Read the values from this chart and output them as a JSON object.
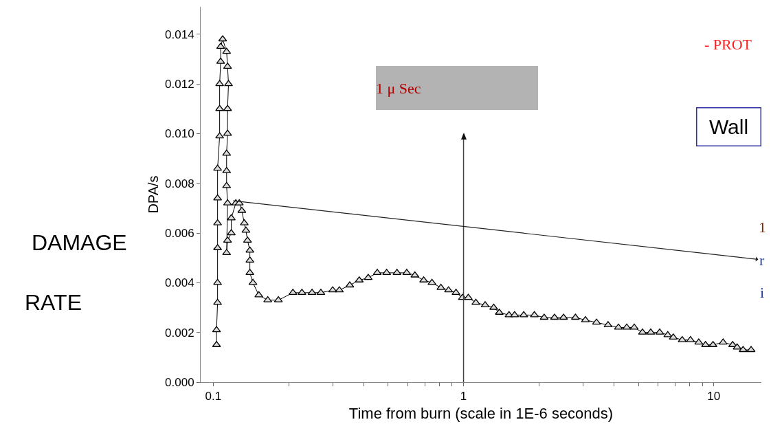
{
  "chart_data": {
    "type": "line",
    "xlabel": "Time from burn (scale in 1E-6 seconds)",
    "ylabel": "DPA/s",
    "log": "x",
    "marker": "triangle",
    "line_style": "solid",
    "xlim": [
      0.089,
      15.5
    ],
    "ylim": [
      0,
      0.0151
    ],
    "xticks": [
      0.1,
      {
        "value": 0.2,
        "label": null
      },
      {
        "value": 0.3,
        "label": null
      },
      {
        "value": 0.4,
        "label": null
      },
      {
        "value": 0.5,
        "label": null
      },
      {
        "value": 0.6,
        "label": null
      },
      {
        "value": 0.7,
        "label": null
      },
      {
        "value": 0.8,
        "label": null
      },
      {
        "value": 0.9,
        "label": null
      },
      1,
      {
        "value": 2,
        "label": null
      },
      {
        "value": 3,
        "label": null
      },
      {
        "value": 4,
        "label": null
      },
      {
        "value": 5,
        "label": null
      },
      {
        "value": 6,
        "label": null
      },
      {
        "value": 7,
        "label": null
      },
      {
        "value": 8,
        "label": null
      },
      {
        "value": 9,
        "label": null
      },
      10
    ],
    "yticks": [
      {
        "value": 0,
        "label": "0.000"
      },
      {
        "value": 0.002,
        "label": "0.002"
      },
      {
        "value": 0.004,
        "label": "0.004"
      },
      {
        "value": 0.006,
        "label": "0.006"
      },
      {
        "value": 0.008,
        "label": "0.008"
      },
      {
        "value": 0.01,
        "label": "0.010"
      },
      {
        "value": 0.012,
        "label": "0.012"
      },
      {
        "value": 0.014,
        "label": "0.014"
      }
    ],
    "series": [
      {
        "color": "#000000",
        "x": [
          0.103,
          0.103,
          0.104,
          0.104,
          0.104,
          0.104,
          0.104,
          0.104,
          0.106,
          0.106,
          0.106,
          0.107,
          0.107,
          0.109,
          0.113,
          0.114,
          0.115,
          0.114,
          0.114,
          0.113,
          0.113,
          0.113,
          0.114,
          0.113,
          0.114,
          0.118,
          0.118,
          0.123,
          0.127,
          0.13,
          0.133,
          0.135,
          0.137,
          0.14,
          0.14,
          0.14,
          0.144,
          0.152,
          0.165,
          0.182,
          0.208,
          0.226,
          0.248,
          0.269,
          0.3,
          0.319,
          0.351,
          0.383,
          0.416,
          0.452,
          0.493,
          0.542,
          0.593,
          0.639,
          0.693,
          0.748,
          0.812,
          0.871,
          0.933,
          0.99,
          1.045,
          1.12,
          1.22,
          1.32,
          1.39,
          1.52,
          1.6,
          1.74,
          1.92,
          2.1,
          2.31,
          2.51,
          2.8,
          3.07,
          3.4,
          3.78,
          4.16,
          4.49,
          4.81,
          5.19,
          5.6,
          6.08,
          6.55,
          6.89,
          7.48,
          8.07,
          8.71,
          9.27,
          9.93,
          10.9,
          11.9,
          12.4,
          13.1,
          14.1
        ],
        "values": [
          0.0015,
          0.0021,
          0.0032,
          0.004,
          0.0054,
          0.0064,
          0.0074,
          0.0086,
          0.0099,
          0.011,
          0.012,
          0.0129,
          0.0135,
          0.0138,
          0.0133,
          0.0127,
          0.012,
          0.011,
          0.01,
          0.0092,
          0.0085,
          0.0079,
          0.0072,
          0.0052,
          0.0057,
          0.006,
          0.0066,
          0.0072,
          0.0072,
          0.0069,
          0.0064,
          0.0061,
          0.0057,
          0.0053,
          0.0049,
          0.0044,
          0.004,
          0.0035,
          0.0033,
          0.0033,
          0.0036,
          0.0036,
          0.0036,
          0.0036,
          0.0037,
          0.0037,
          0.0039,
          0.0041,
          0.0042,
          0.0044,
          0.0044,
          0.0044,
          0.0044,
          0.0043,
          0.0041,
          0.004,
          0.0038,
          0.0037,
          0.0036,
          0.0034,
          0.0034,
          0.0032,
          0.0031,
          0.003,
          0.0028,
          0.0027,
          0.0027,
          0.0027,
          0.0027,
          0.0026,
          0.0026,
          0.0026,
          0.0026,
          0.0025,
          0.0024,
          0.0023,
          0.0022,
          0.0022,
          0.0022,
          0.002,
          0.002,
          0.002,
          0.0019,
          0.0018,
          0.0017,
          0.0017,
          0.0016,
          0.0015,
          0.0015,
          0.0016,
          0.0015,
          0.0014,
          0.0013,
          0.0013
        ]
      }
    ],
    "ref_lines": [
      {
        "axis": "x",
        "value": 1
      }
    ],
    "annotations": [
      "1 μ Sec",
      {
        "text": "r",
        "x": 0.12,
        "y": 0.0073
      },
      "- PROT",
      "Wall",
      "1",
      "i",
      "DAMAGE",
      "RATE"
    ]
  }
}
